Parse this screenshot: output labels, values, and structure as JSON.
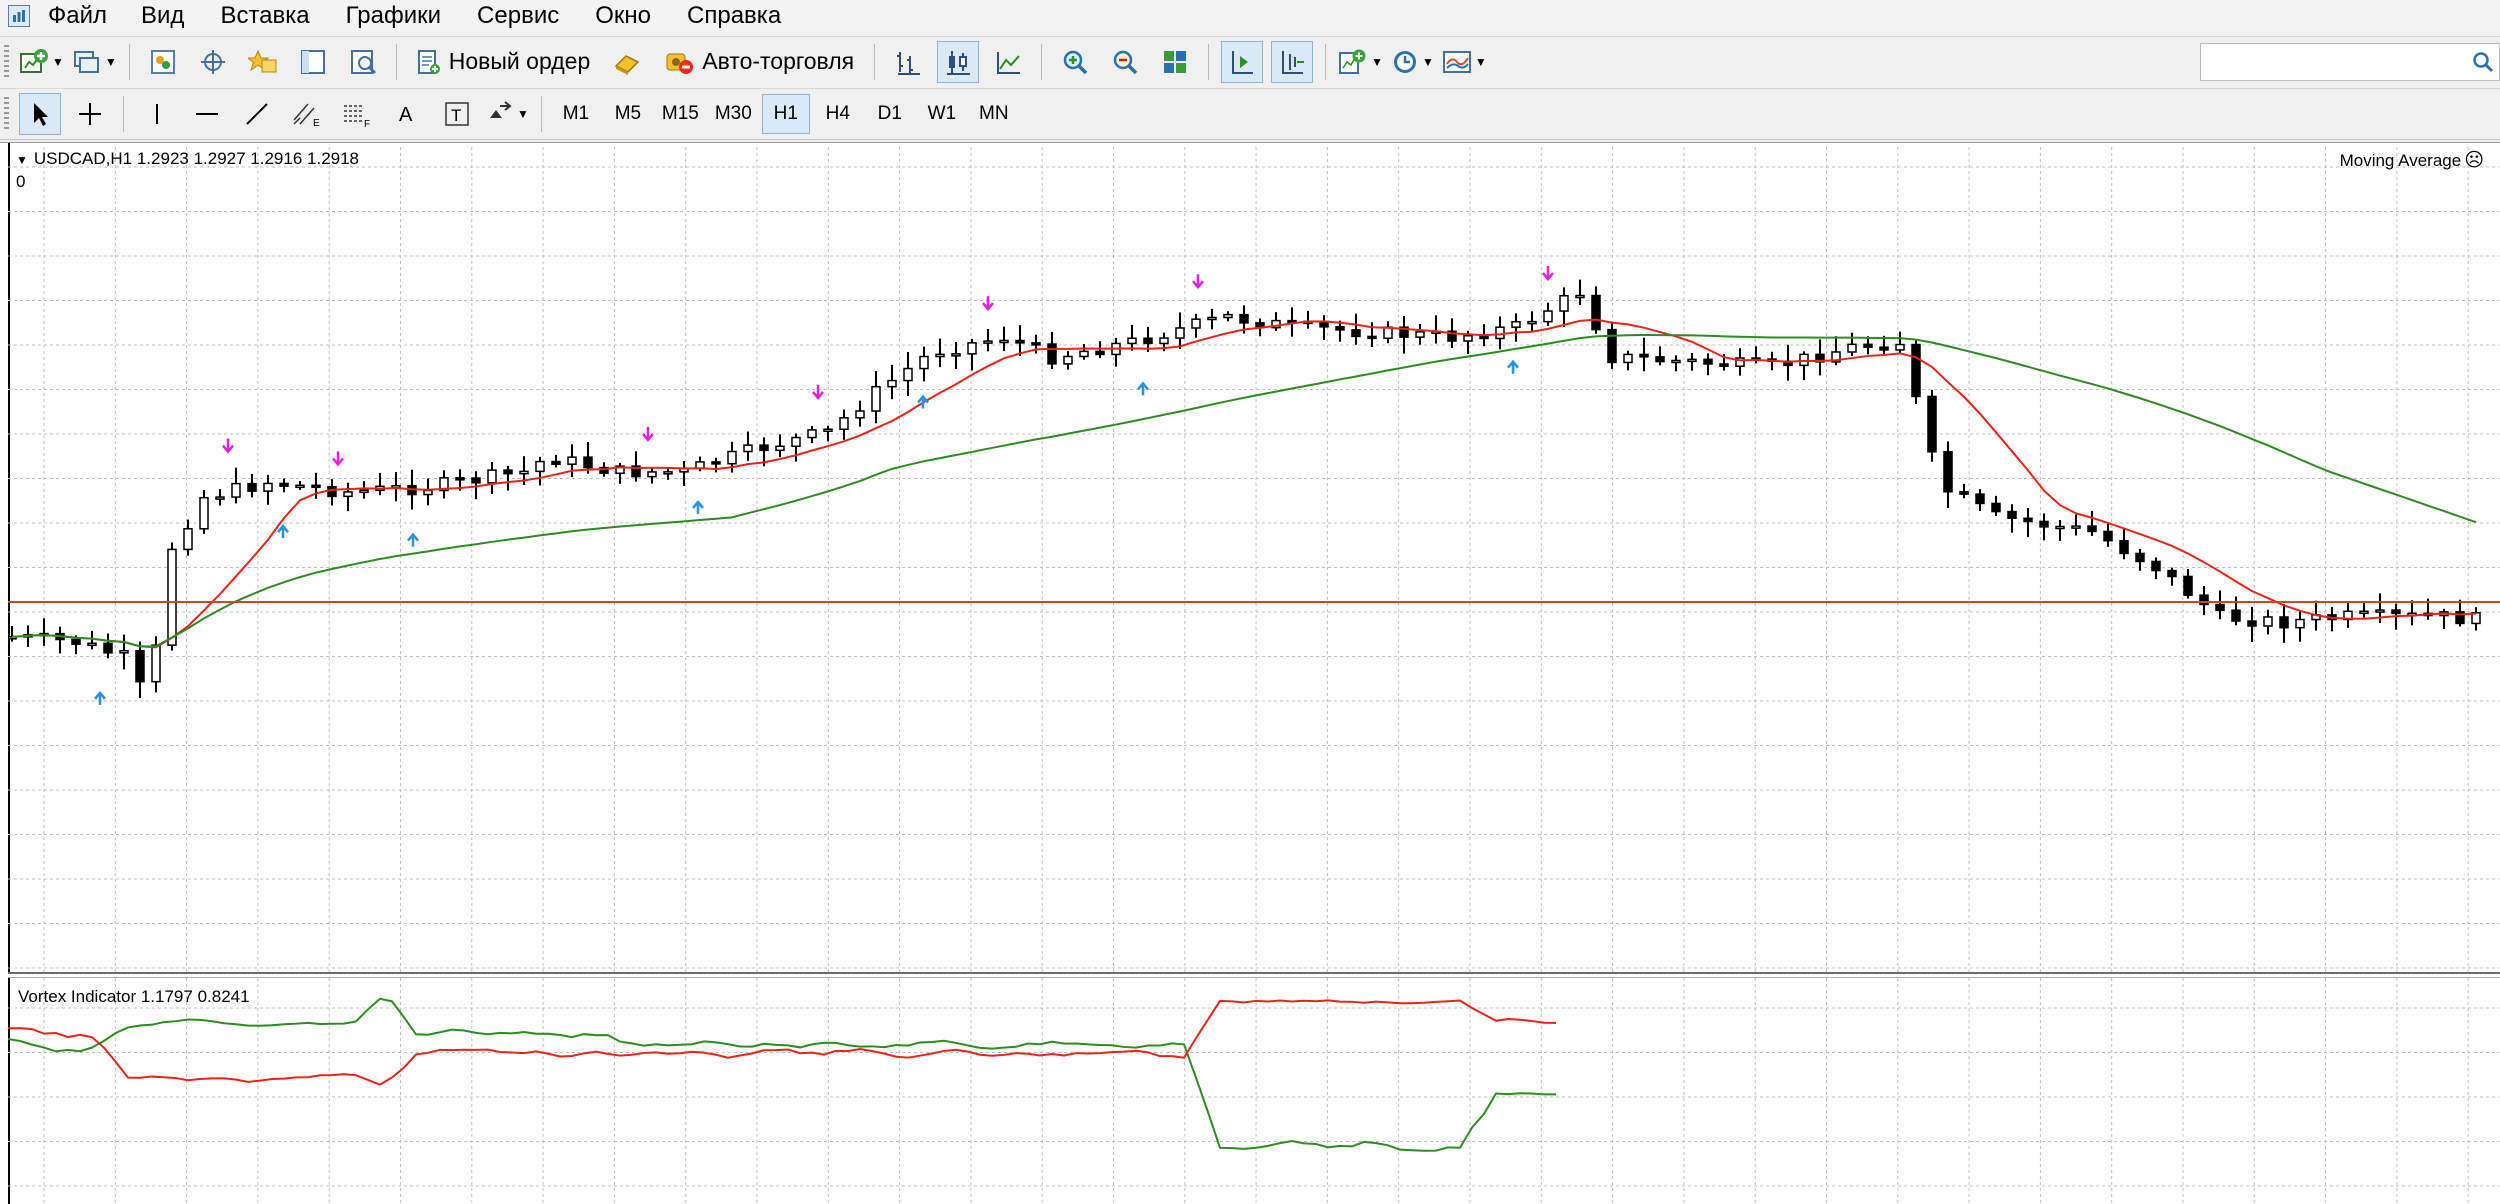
{
  "menu": {
    "items": [
      {
        "name": "menu-file",
        "label": "Файл"
      },
      {
        "name": "menu-view",
        "label": "Вид"
      },
      {
        "name": "menu-insert",
        "label": "Вставка"
      },
      {
        "name": "menu-charts",
        "label": "Графики"
      },
      {
        "name": "menu-tools",
        "label": "Сервис"
      },
      {
        "name": "menu-window",
        "label": "Окно"
      },
      {
        "name": "menu-help",
        "label": "Справка"
      }
    ]
  },
  "toolbar": {
    "new_order_label": "Новый ордер",
    "autotrading_label": "Авто-торговля",
    "search_placeholder": ""
  },
  "timeframes": [
    "M1",
    "M5",
    "M15",
    "M30",
    "H1",
    "H4",
    "D1",
    "W1",
    "MN"
  ],
  "active_timeframe": "H1",
  "chart": {
    "symbol_line": "USDCAD,H1  1.2923 1.2927 1.2916 1.2918",
    "zero_label": "0",
    "indicator_label": "Moving Average",
    "indicator_icon": "☹",
    "subwindow_label": "Vortex Indicator 1.1797 0.8241",
    "colors": {
      "grid": "#c0c0c0",
      "candle": "#000000",
      "ma_fast": "#e8241a",
      "ma_slow": "#2e8b22",
      "level_line": "#d2451e",
      "arrow_down": "#e020e0",
      "arrow_up": "#2a8ff0",
      "vortex_plus": "#2e8b22",
      "vortex_minus": "#e8241a"
    }
  }
}
